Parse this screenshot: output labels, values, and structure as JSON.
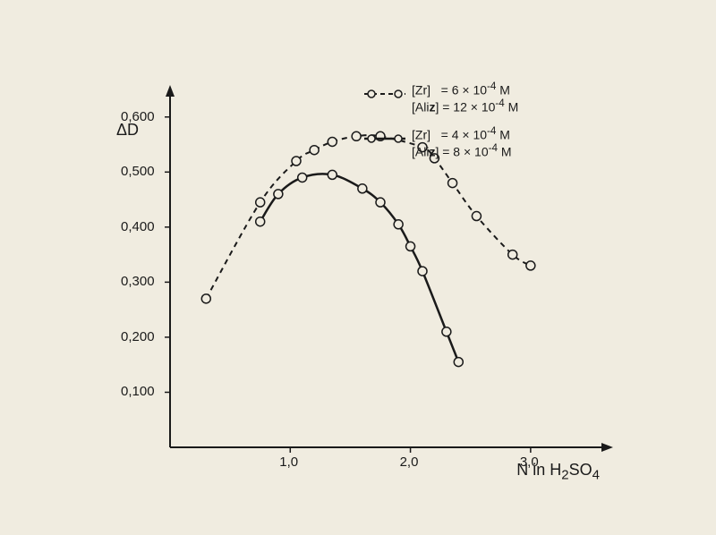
{
  "chart": {
    "type": "line",
    "background_color": "#f0ece0",
    "line_color": "#1a1a1a",
    "marker_color": "#ffffff",
    "marker_stroke": "#1a1a1a",
    "y_axis": {
      "label": "ΔD",
      "ticks": [
        "0,100",
        "0,200",
        "0,300",
        "0,400",
        "0,500",
        "0,600"
      ],
      "tick_values": [
        0.1,
        0.2,
        0.3,
        0.4,
        0.5,
        0.6
      ],
      "min": 0,
      "max": 0.65
    },
    "x_axis": {
      "label": "N in H₂SO₄",
      "ticks": [
        "1,0",
        "2,0",
        "3,0"
      ],
      "tick_values": [
        1.0,
        2.0,
        3.0
      ],
      "min": 0,
      "max": 3.5
    },
    "series": [
      {
        "name": "dashed",
        "style": "dashed",
        "line_width": 2,
        "marker": "circle",
        "marker_size": 5,
        "data": [
          {
            "x": 0.3,
            "y": 0.27
          },
          {
            "x": 0.75,
            "y": 0.445
          },
          {
            "x": 1.05,
            "y": 0.52
          },
          {
            "x": 1.2,
            "y": 0.54
          },
          {
            "x": 1.35,
            "y": 0.555
          },
          {
            "x": 1.55,
            "y": 0.565
          },
          {
            "x": 1.75,
            "y": 0.565
          },
          {
            "x": 2.1,
            "y": 0.545
          },
          {
            "x": 2.2,
            "y": 0.525
          },
          {
            "x": 2.35,
            "y": 0.48
          },
          {
            "x": 2.55,
            "y": 0.42
          },
          {
            "x": 2.85,
            "y": 0.35
          },
          {
            "x": 3.0,
            "y": 0.33
          }
        ],
        "legend": {
          "line1": "[Zr]   = 6 × 10⁻⁴ M",
          "line2": "[Aliz] = 12 × 10⁻⁴ M"
        }
      },
      {
        "name": "solid",
        "style": "solid",
        "line_width": 2.5,
        "marker": "circle",
        "marker_size": 5,
        "data": [
          {
            "x": 0.75,
            "y": 0.41
          },
          {
            "x": 0.9,
            "y": 0.46
          },
          {
            "x": 1.1,
            "y": 0.49
          },
          {
            "x": 1.35,
            "y": 0.495
          },
          {
            "x": 1.6,
            "y": 0.47
          },
          {
            "x": 1.75,
            "y": 0.445
          },
          {
            "x": 1.9,
            "y": 0.405
          },
          {
            "x": 2.0,
            "y": 0.365
          },
          {
            "x": 2.1,
            "y": 0.32
          },
          {
            "x": 2.3,
            "y": 0.21
          },
          {
            "x": 2.4,
            "y": 0.155
          }
        ],
        "legend": {
          "line1": "[Zr]   = 4 × 10⁻⁴ M",
          "line2": "[Aliz] = 8 × 10⁻⁴ M"
        }
      }
    ]
  }
}
